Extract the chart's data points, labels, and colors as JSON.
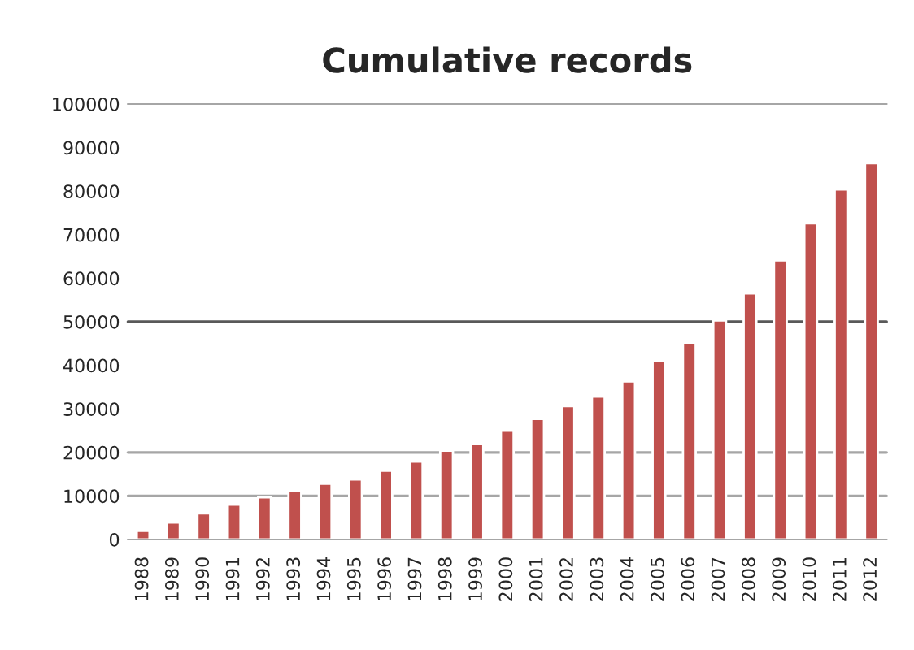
{
  "chart_data": {
    "type": "bar",
    "title": "Cumulative records",
    "categories": [
      "1988",
      "1989",
      "1990",
      "1991",
      "1992",
      "1993",
      "1994",
      "1995",
      "1996",
      "1997",
      "1998",
      "1999",
      "2000",
      "2001",
      "2002",
      "2003",
      "2004",
      "2005",
      "2006",
      "2007",
      "2008",
      "2009",
      "2010",
      "2011",
      "2012"
    ],
    "values": [
      2000,
      3900,
      6000,
      8000,
      9700,
      11100,
      12800,
      13800,
      15800,
      17900,
      20400,
      21900,
      25000,
      27700,
      30600,
      32800,
      36300,
      41000,
      45200,
      50300,
      56500,
      64100,
      72600,
      80400,
      86400
    ],
    "color": "#c0504d",
    "ylim": [
      0,
      100000
    ],
    "yticks": [
      0,
      10000,
      20000,
      30000,
      40000,
      50000,
      60000,
      70000,
      80000,
      90000,
      100000
    ],
    "ref_lines": [
      {
        "axis": "y",
        "value": 10000,
        "color": "#a6a6a6"
      },
      {
        "axis": "y",
        "value": 20000,
        "color": "#a6a6a6"
      },
      {
        "axis": "y",
        "value": 50000,
        "color": "#595959"
      }
    ]
  }
}
